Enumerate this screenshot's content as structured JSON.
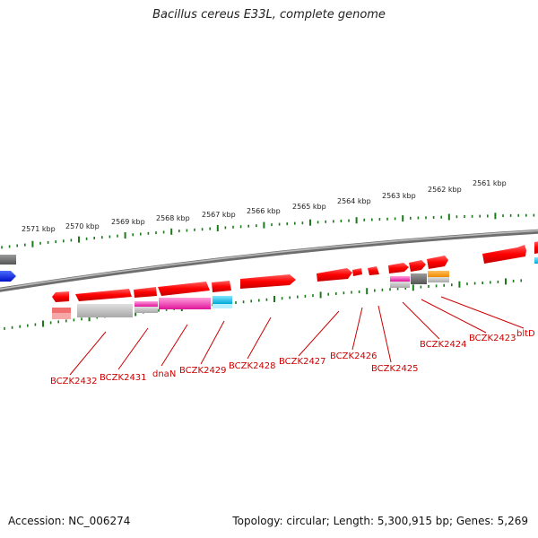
{
  "title": "Bacillus cereus E33L, complete genome",
  "accession": "Accession: NC_006274",
  "summary": "Topology: circular; Length: 5,300,915 bp; Genes: 5,269",
  "colors": {
    "tick": "#1a7a1a",
    "label": "#cc0000",
    "gene": "#ff0000",
    "backbone": "#808080"
  },
  "ruler": {
    "ticks": [
      {
        "label": "2571 kbp"
      },
      {
        "label": "2570 kbp"
      },
      {
        "label": "2569 kbp"
      },
      {
        "label": "2568 kbp"
      },
      {
        "label": "2567 kbp"
      },
      {
        "label": "2566 kbp"
      },
      {
        "label": "2565 kbp"
      },
      {
        "label": "2564 kbp"
      },
      {
        "label": "2563 kbp"
      },
      {
        "label": "2562 kbp"
      },
      {
        "label": "2561 kbp"
      }
    ]
  },
  "genes": [
    {
      "label": "BCZK2432"
    },
    {
      "label": "BCZK2431"
    },
    {
      "label": "dnaN"
    },
    {
      "label": "BCZK2429"
    },
    {
      "label": "BCZK2428"
    },
    {
      "label": "BCZK2427"
    },
    {
      "label": "BCZK2426"
    },
    {
      "label": "BCZK2425"
    },
    {
      "label": "BCZK2424"
    },
    {
      "label": "BCZK2423"
    },
    {
      "label": "bltD"
    }
  ]
}
